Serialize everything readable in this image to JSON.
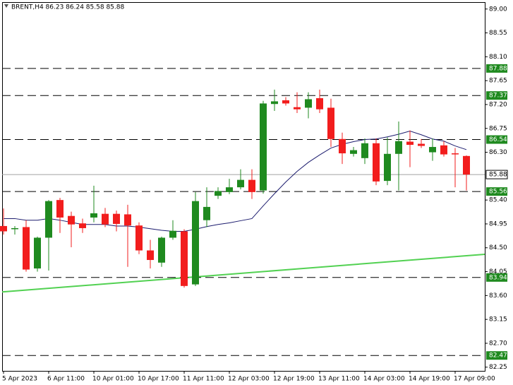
{
  "chart_data": {
    "type": "candlestick",
    "title": "BRENT,H4 86.23 86.24 85.58 85.88",
    "categories": [
      "5 Apr 2023",
      null,
      null,
      null,
      "6 Apr 11:00",
      null,
      null,
      null,
      "10 Apr 01:00",
      null,
      null,
      null,
      "10 Apr 17:00",
      null,
      null,
      null,
      "11 Apr 11:00",
      null,
      null,
      null,
      "12 Apr 03:00",
      null,
      null,
      null,
      "12 Apr 19:00",
      null,
      null,
      null,
      "13 Apr 11:00",
      null,
      null,
      null,
      "14 Apr 03:00",
      null,
      null,
      null,
      "14 Apr 19:00",
      null,
      null,
      null,
      "17 Apr 09:00",
      null
    ],
    "open": [
      84.91,
      84.86,
      84.89,
      84.11,
      84.69,
      85.4,
      85.1,
      84.96,
      85.07,
      85.14,
      85.14,
      85.13,
      84.92,
      84.45,
      84.22,
      84.69,
      84.81,
      83.81,
      85.02,
      85.48,
      85.55,
      85.64,
      85.78,
      85.58,
      87.21,
      87.28,
      87.15,
      87.14,
      87.32,
      87.14,
      86.55,
      86.27,
      86.19,
      86.47,
      85.76,
      86.27,
      86.5,
      86.46,
      86.3,
      86.43,
      86.28,
      86.23
    ],
    "high": [
      85.24,
      84.91,
      85.02,
      84.71,
      85.4,
      85.44,
      85.18,
      85.05,
      85.67,
      85.25,
      85.2,
      85.31,
      84.98,
      84.65,
      84.71,
      85.02,
      84.85,
      85.55,
      85.64,
      85.64,
      85.8,
      85.98,
      85.98,
      87.27,
      87.48,
      87.34,
      87.43,
      87.43,
      87.48,
      87.31,
      86.67,
      86.4,
      86.56,
      86.56,
      86.58,
      86.88,
      86.71,
      86.55,
      86.56,
      86.51,
      86.38,
      86.24
    ],
    "low": [
      84.75,
      84.75,
      84.05,
      84.05,
      84.07,
      84.78,
      84.51,
      84.78,
      84.98,
      84.89,
      84.81,
      84.14,
      84.38,
      84.11,
      84.14,
      84.65,
      83.75,
      83.78,
      84.89,
      85.42,
      85.51,
      85.6,
      85.42,
      85.52,
      87.08,
      87.18,
      87.04,
      86.94,
      87.04,
      86.4,
      86.08,
      86.22,
      86.08,
      85.68,
      85.68,
      85.58,
      86.02,
      86.38,
      86.14,
      86.22,
      85.64,
      85.58
    ],
    "close": [
      84.81,
      84.87,
      84.09,
      84.69,
      85.38,
      85.07,
      84.94,
      84.87,
      85.15,
      84.94,
      84.95,
      84.92,
      84.45,
      84.27,
      84.69,
      84.82,
      83.78,
      85.38,
      85.27,
      85.57,
      85.64,
      85.78,
      85.55,
      87.22,
      87.26,
      87.22,
      87.11,
      87.3,
      87.11,
      86.55,
      86.28,
      86.34,
      86.47,
      85.75,
      86.27,
      86.51,
      86.44,
      86.42,
      86.4,
      86.26,
      86.26,
      85.88
    ],
    "up_color": "#1f8a1f",
    "down_color": "#f21d1d",
    "moving_average": {
      "color": "#1c1c6e",
      "values": [
        85.05,
        85.05,
        85.02,
        85.02,
        85.05,
        85.02,
        84.98,
        84.94,
        84.94,
        84.94,
        84.91,
        84.91,
        84.89,
        84.86,
        84.83,
        84.81,
        84.81,
        84.85,
        84.9,
        84.94,
        84.97,
        85.01,
        85.05,
        85.29,
        85.52,
        85.74,
        85.94,
        86.11,
        86.25,
        86.38,
        86.45,
        86.5,
        86.54,
        86.55,
        86.59,
        86.64,
        86.7,
        86.63,
        86.55,
        86.51,
        86.42,
        86.35
      ]
    },
    "trendline": {
      "color": "#52d152",
      "values": [
        83.67,
        84.35
      ]
    },
    "levels": [
      {
        "value": 87.88,
        "label": "87.88"
      },
      {
        "value": 87.37,
        "label": "87.37"
      },
      {
        "value": 86.54,
        "label": "86.54"
      },
      {
        "value": 85.56,
        "label": "85.56"
      },
      {
        "value": 83.94,
        "label": "83.94"
      },
      {
        "value": 82.47,
        "label": "82.47"
      }
    ],
    "level_color": "#1f8a1f",
    "current_price": {
      "value": 85.88,
      "label": "85.88"
    },
    "ylim": [
      82.18,
      89.13
    ],
    "yticks": [
      {
        "value": 89.0,
        "label": "89.00"
      },
      {
        "value": 88.55,
        "label": "88.55"
      },
      {
        "value": 88.1,
        "label": "88.10"
      },
      {
        "value": 87.65,
        "label": "87.65"
      },
      {
        "value": 87.2,
        "label": "87.20"
      },
      {
        "value": 86.75,
        "label": "86.75"
      },
      {
        "value": 86.3,
        "label": "86.30"
      },
      {
        "value": 85.4,
        "label": "85.40"
      },
      {
        "value": 84.95,
        "label": "84.95"
      },
      {
        "value": 84.5,
        "label": "84.50"
      },
      {
        "value": 84.05,
        "label": "84.05"
      },
      {
        "value": 83.6,
        "label": "83.60"
      },
      {
        "value": 83.15,
        "label": "83.15"
      },
      {
        "value": 82.7,
        "label": "82.70"
      },
      {
        "value": 82.25,
        "label": "82.25"
      }
    ]
  }
}
